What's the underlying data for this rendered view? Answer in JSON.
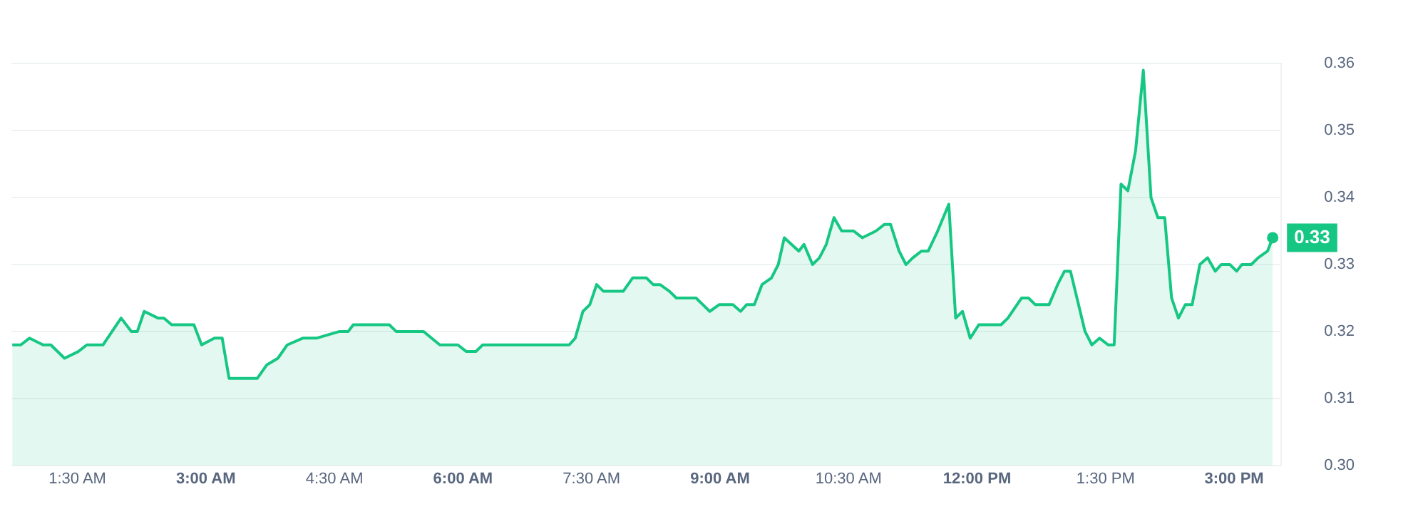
{
  "chart_data": {
    "type": "area",
    "x": [
      0.74,
      0.84,
      0.94,
      1.1,
      1.19,
      1.35,
      1.51,
      1.61,
      1.8,
      2.01,
      2.13,
      2.2,
      2.28,
      2.44,
      2.51,
      2.6,
      2.7,
      2.8,
      2.86,
      2.95,
      3.1,
      3.19,
      3.27,
      3.44,
      3.55,
      3.6,
      3.71,
      3.84,
      3.95,
      4.13,
      4.29,
      4.56,
      4.66,
      4.72,
      4.82,
      4.98,
      5.14,
      5.22,
      5.3,
      5.38,
      5.46,
      5.54,
      5.73,
      5.83,
      5.94,
      6.04,
      6.15,
      6.23,
      6.36,
      6.47,
      6.63,
      6.79,
      6.89,
      7.05,
      7.13,
      7.24,
      7.31,
      7.4,
      7.48,
      7.56,
      7.64,
      7.74,
      7.87,
      7.98,
      8.06,
      8.14,
      8.22,
      8.3,
      8.41,
      8.49,
      8.56,
      8.64,
      8.72,
      8.8,
      8.88,
      8.99,
      9.15,
      9.24,
      9.31,
      9.4,
      9.49,
      9.6,
      9.68,
      9.75,
      9.92,
      9.98,
      10.08,
      10.16,
      10.24,
      10.33,
      10.42,
      10.56,
      10.66,
      10.82,
      10.92,
      10.99,
      11.09,
      11.17,
      11.25,
      11.35,
      11.43,
      11.54,
      11.67,
      11.75,
      11.83,
      11.92,
      12.02,
      12.09,
      12.17,
      12.28,
      12.36,
      12.52,
      12.6,
      12.68,
      12.84,
      12.94,
      13.02,
      13.09,
      13.26,
      13.34,
      13.43,
      13.53,
      13.6,
      13.68,
      13.76,
      13.85,
      13.94,
      14.03,
      14.11,
      14.19,
      14.27,
      14.35,
      14.43,
      14.51,
      14.6,
      14.69,
      14.78,
      14.85,
      14.95,
      15.03,
      15.09,
      15.2,
      15.28,
      15.39,
      15.45
    ],
    "series": [
      {
        "color": "#16c784",
        "values": [
          0.318,
          0.318,
          0.319,
          0.318,
          0.318,
          0.316,
          0.317,
          0.318,
          0.318,
          0.322,
          0.32,
          0.32,
          0.323,
          0.322,
          0.322,
          0.321,
          0.321,
          0.321,
          0.321,
          0.318,
          0.319,
          0.319,
          0.313,
          0.313,
          0.313,
          0.313,
          0.315,
          0.316,
          0.318,
          0.319,
          0.319,
          0.32,
          0.32,
          0.321,
          0.321,
          0.321,
          0.321,
          0.32,
          0.32,
          0.32,
          0.32,
          0.32,
          0.318,
          0.318,
          0.318,
          0.317,
          0.317,
          0.318,
          0.318,
          0.318,
          0.318,
          0.318,
          0.318,
          0.318,
          0.318,
          0.318,
          0.319,
          0.323,
          0.324,
          0.327,
          0.326,
          0.326,
          0.326,
          0.328,
          0.328,
          0.328,
          0.327,
          0.327,
          0.326,
          0.325,
          0.325,
          0.325,
          0.325,
          0.324,
          0.323,
          0.324,
          0.324,
          0.323,
          0.324,
          0.324,
          0.327,
          0.328,
          0.33,
          0.334,
          0.332,
          0.333,
          0.33,
          0.331,
          0.333,
          0.337,
          0.335,
          0.335,
          0.334,
          0.335,
          0.336,
          0.336,
          0.332,
          0.33,
          0.331,
          0.332,
          0.332,
          0.335,
          0.339,
          0.322,
          0.323,
          0.319,
          0.321,
          0.321,
          0.321,
          0.321,
          0.322,
          0.325,
          0.325,
          0.324,
          0.324,
          0.327,
          0.329,
          0.329,
          0.32,
          0.318,
          0.319,
          0.318,
          0.318,
          0.342,
          0.341,
          0.347,
          0.359,
          0.34,
          0.337,
          0.337,
          0.325,
          0.322,
          0.324,
          0.324,
          0.33,
          0.331,
          0.329,
          0.33,
          0.33,
          0.329,
          0.33,
          0.33,
          0.331,
          0.332,
          0.334
        ]
      }
    ],
    "xlim": [
      0.73,
      15.55
    ],
    "xticks": [
      {
        "value": 1.5,
        "label": "1:30 AM"
      },
      {
        "value": 3,
        "label": "3:00 AM"
      },
      {
        "value": 4.5,
        "label": "4:30 AM"
      },
      {
        "value": 6,
        "label": "6:00 AM"
      },
      {
        "value": 7.5,
        "label": "7:30 AM"
      },
      {
        "value": 9,
        "label": "9:00 AM"
      },
      {
        "value": 10.5,
        "label": "10:30 AM"
      },
      {
        "value": 12,
        "label": "12:00 PM"
      },
      {
        "value": 13.5,
        "label": "1:30 PM"
      },
      {
        "value": 15,
        "label": "3:00 PM"
      }
    ],
    "ylim": [
      0.3,
      0.36
    ],
    "yticks": [
      {
        "value": 0.3,
        "label": "0.30"
      },
      0.31,
      0.32,
      0.33,
      0.34,
      0.35,
      0.36
    ],
    "annotations": [
      {
        "text": "0.33",
        "x": 15.45,
        "y": 0.334
      }
    ],
    "grid": "y",
    "legend": false,
    "marker": "none",
    "line_style": "solid"
  }
}
